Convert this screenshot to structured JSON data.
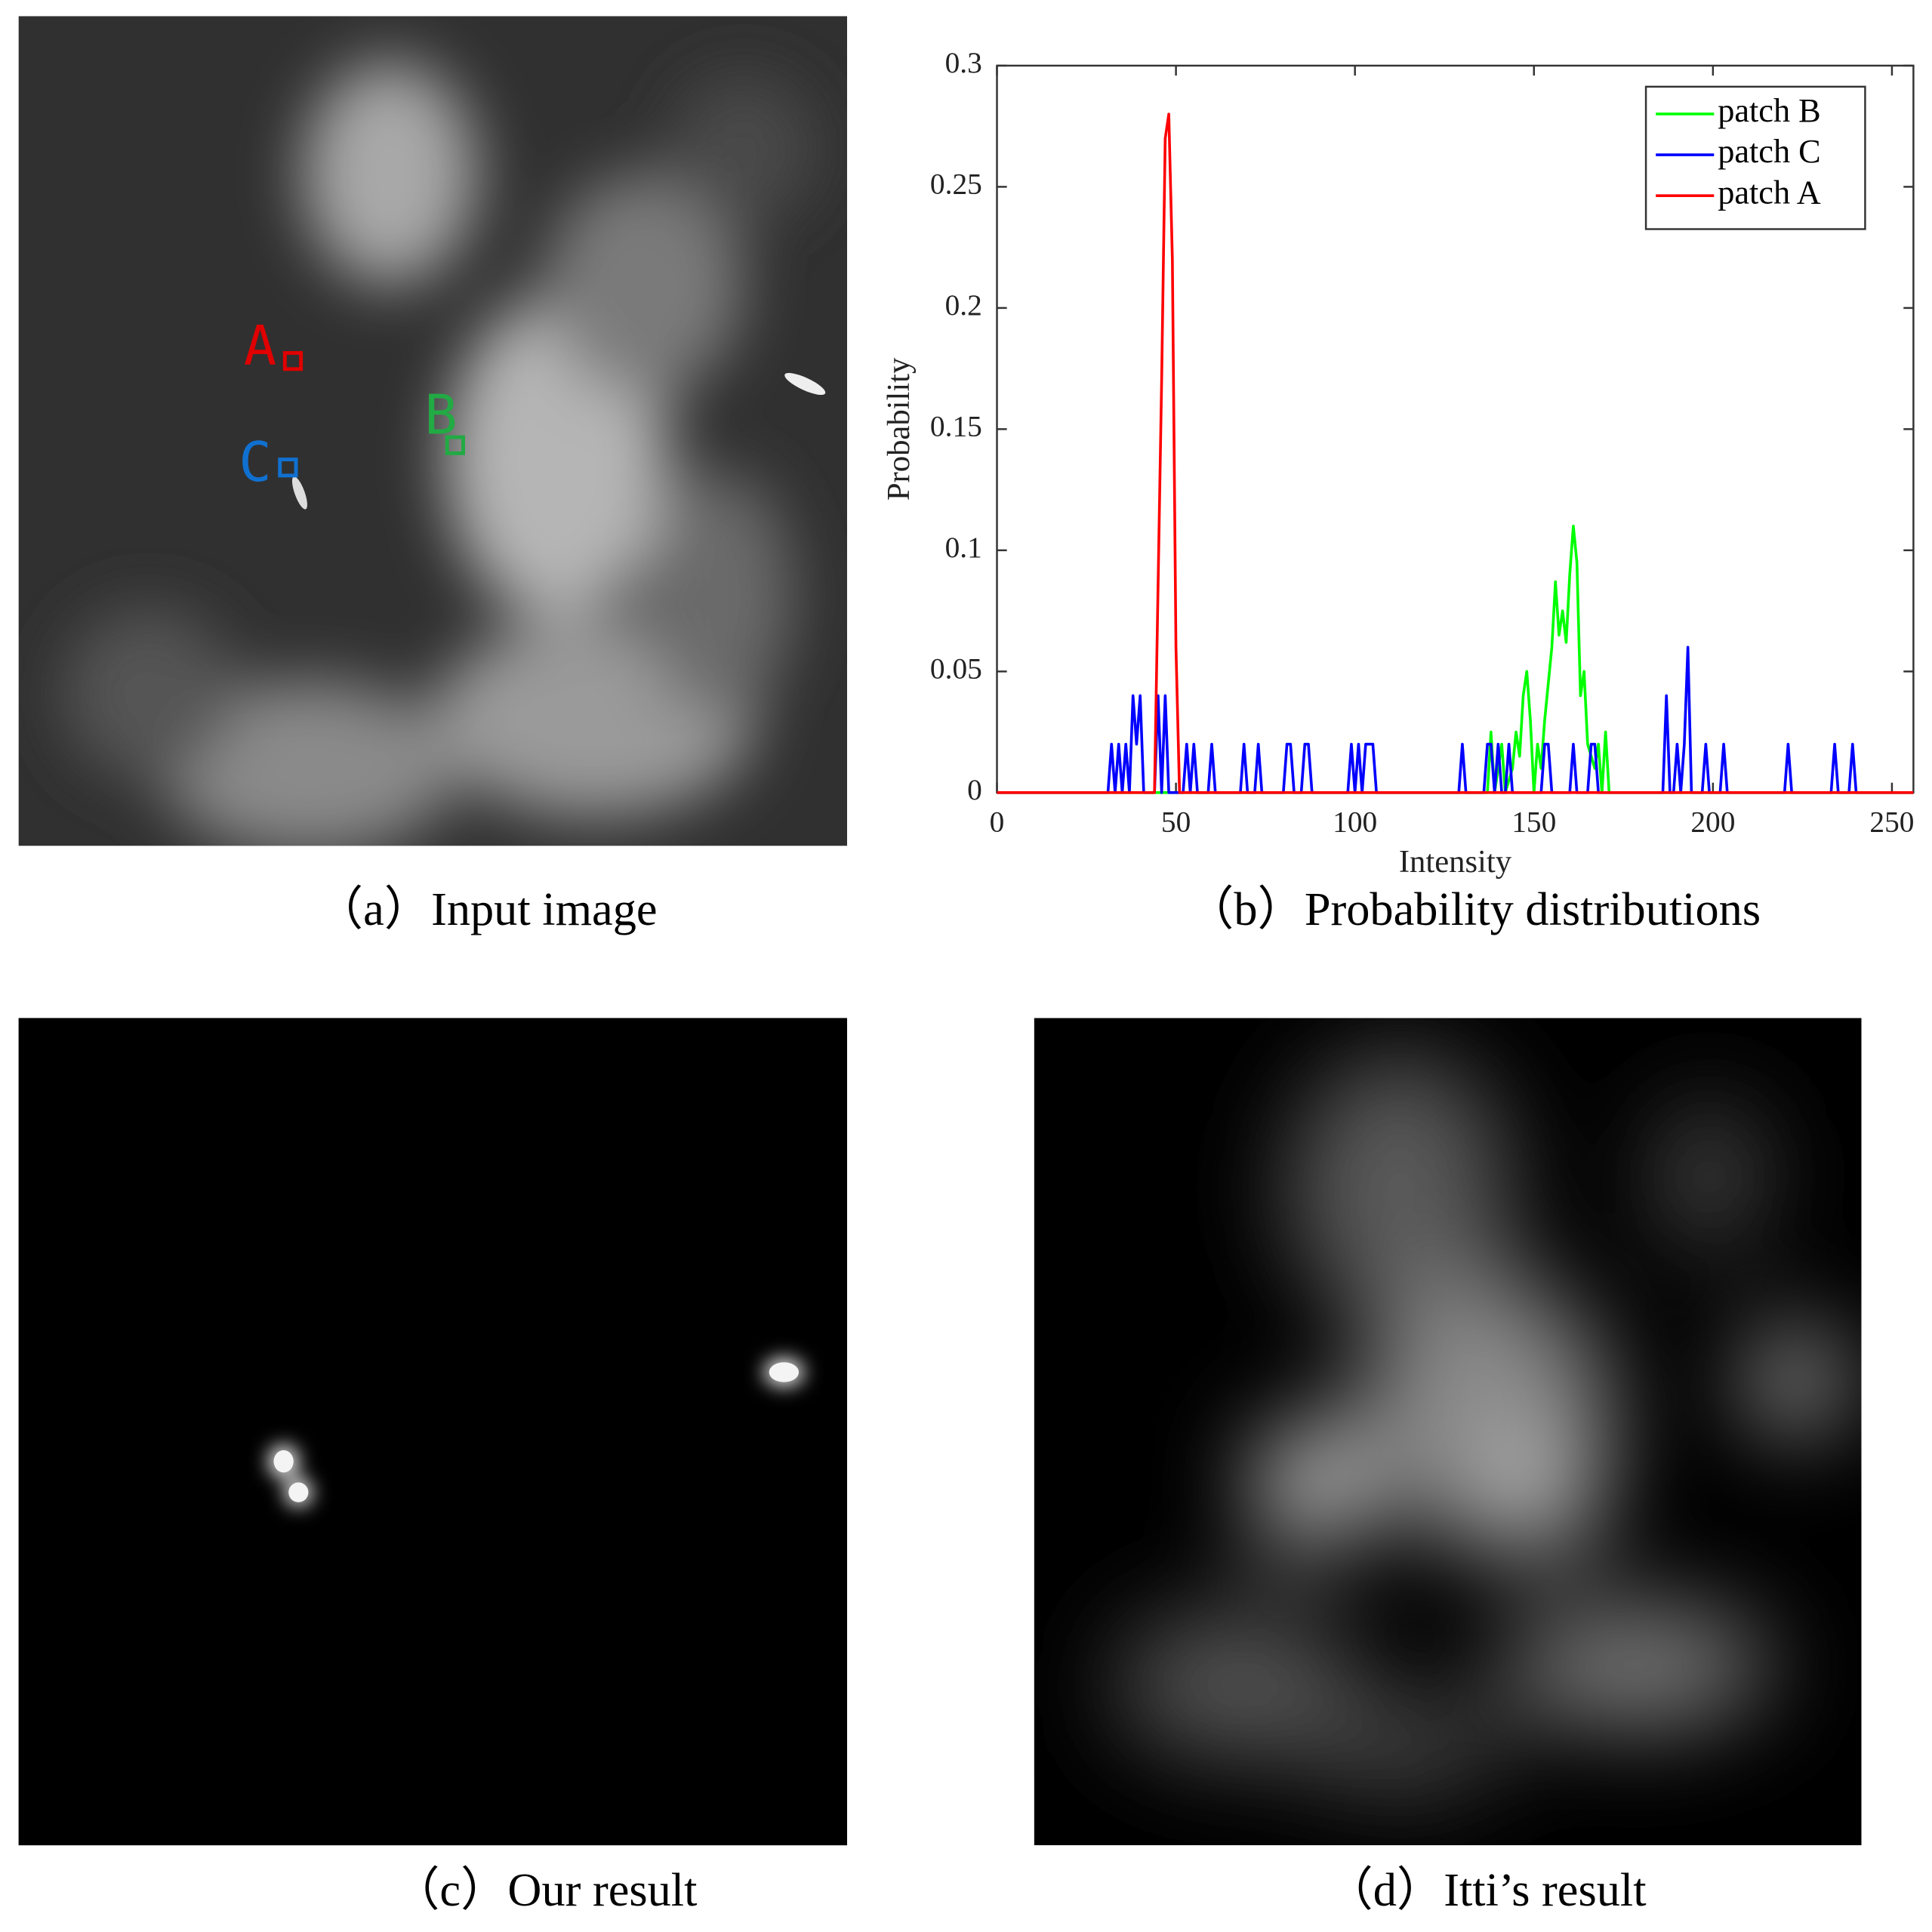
{
  "panels": [
    {
      "caption": "（a）Input image",
      "labels": [
        "A",
        "B",
        "C"
      ]
    },
    {
      "caption": "（b）Probability distributions"
    },
    {
      "caption": "（c）Our result"
    },
    {
      "caption": "（d）Itti’s result"
    }
  ],
  "chart_data": {
    "type": "line",
    "xlabel": "Intensity",
    "ylabel": "Probability",
    "xlim": [
      0,
      256
    ],
    "ylim": [
      0,
      0.3
    ],
    "xticks": [
      0,
      50,
      100,
      150,
      200,
      250
    ],
    "yticks": [
      0,
      0.05,
      0.1,
      0.15,
      0.2,
      0.25,
      0.3
    ],
    "legend": "upper right",
    "series": [
      {
        "name": "patch B",
        "color": "#00ff00",
        "x": [
          0,
          137,
          138,
          139,
          141,
          142,
          144,
          145,
          146,
          147,
          148,
          149,
          150,
          151,
          152,
          153,
          154,
          155,
          156,
          157,
          158,
          159,
          160,
          161,
          162,
          163,
          164,
          165,
          166,
          167,
          168,
          169,
          170,
          171,
          256
        ],
        "values": [
          0,
          0,
          0.025,
          0,
          0.02,
          0,
          0.01,
          0.025,
          0.015,
          0.04,
          0.05,
          0.03,
          0,
          0.02,
          0.01,
          0.03,
          0.045,
          0.06,
          0.087,
          0.065,
          0.075,
          0.062,
          0.09,
          0.11,
          0.095,
          0.04,
          0.05,
          0.02,
          0.015,
          0.01,
          0.02,
          0,
          0.025,
          0,
          0
        ]
      },
      {
        "name": "patch C",
        "color": "#0000ff",
        "x": [
          0,
          31,
          32,
          33,
          34,
          35,
          36,
          37,
          38,
          39,
          40,
          41,
          44,
          45,
          46,
          47,
          48,
          52,
          53,
          54,
          55,
          56,
          59,
          60,
          61,
          68,
          69,
          70,
          72,
          73,
          74,
          80,
          81,
          82,
          83,
          85,
          86,
          87,
          88,
          98,
          99,
          100,
          101,
          102,
          103,
          104,
          105,
          106,
          129,
          130,
          131,
          136,
          137,
          138,
          139,
          140,
          141,
          142,
          143,
          144,
          152,
          153,
          154,
          155,
          160,
          161,
          162,
          165,
          166,
          167,
          168,
          186,
          187,
          188,
          189,
          190,
          191,
          192,
          193,
          194,
          197,
          198,
          199,
          202,
          203,
          204,
          220,
          221,
          222,
          233,
          234,
          235,
          238,
          239,
          240,
          256
        ],
        "values": [
          0,
          0,
          0.02,
          0,
          0.02,
          0,
          0.02,
          0,
          0.04,
          0.02,
          0.04,
          0,
          0,
          0.04,
          0,
          0.04,
          0,
          0,
          0.02,
          0,
          0.02,
          0,
          0,
          0.02,
          0,
          0,
          0.02,
          0,
          0,
          0.02,
          0,
          0,
          0.02,
          0.02,
          0,
          0,
          0.02,
          0.02,
          0,
          0,
          0.02,
          0,
          0.02,
          0,
          0.02,
          0.02,
          0.02,
          0,
          0,
          0.02,
          0,
          0,
          0.02,
          0.02,
          0,
          0.02,
          0,
          0,
          0.02,
          0,
          0,
          0.02,
          0.02,
          0,
          0,
          0.02,
          0,
          0,
          0.02,
          0.02,
          0,
          0,
          0.04,
          0,
          0,
          0.02,
          0,
          0.02,
          0.06,
          0,
          0,
          0.02,
          0,
          0,
          0.02,
          0,
          0,
          0.02,
          0,
          0,
          0.02,
          0,
          0,
          0.02,
          0,
          0
        ]
      },
      {
        "name": "patch A",
        "color": "#ff0000",
        "x": [
          0,
          44,
          46,
          47,
          48,
          49,
          50,
          51,
          256
        ],
        "values": [
          0,
          0,
          0.17,
          0.27,
          0.28,
          0.22,
          0.06,
          0,
          0
        ]
      }
    ]
  }
}
